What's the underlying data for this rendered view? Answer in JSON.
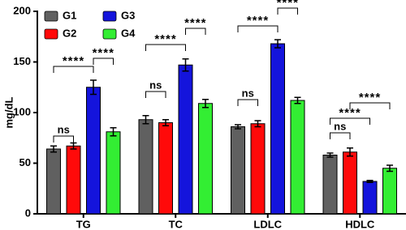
{
  "chart_data": {
    "type": "bar",
    "y_label": "mg/dL",
    "categories": [
      "TG",
      "TC",
      "LDLC",
      "HDLC"
    ],
    "series": [
      {
        "name": "G1",
        "color": "#606060",
        "values": [
          64,
          93,
          86,
          58
        ],
        "errors": [
          3,
          4,
          2,
          2
        ]
      },
      {
        "name": "G2",
        "color": "#ff0a0a",
        "values": [
          67,
          90,
          89,
          61
        ],
        "errors": [
          3,
          3,
          3,
          4
        ]
      },
      {
        "name": "G3",
        "color": "#1414dc",
        "values": [
          125,
          147,
          168,
          32
        ],
        "errors": [
          7,
          6,
          4,
          1
        ]
      },
      {
        "name": "G4",
        "color": "#33ee33",
        "values": [
          81,
          109,
          112,
          45
        ],
        "errors": [
          4,
          4,
          3,
          3
        ]
      }
    ],
    "ylim": [
      0,
      200
    ],
    "yticks": [
      0,
      50,
      100,
      150,
      200
    ],
    "annotations": [
      "ns",
      "****",
      "****",
      "ns",
      "****",
      "****",
      "ns",
      "****",
      "****",
      "ns",
      "****",
      "****"
    ]
  }
}
